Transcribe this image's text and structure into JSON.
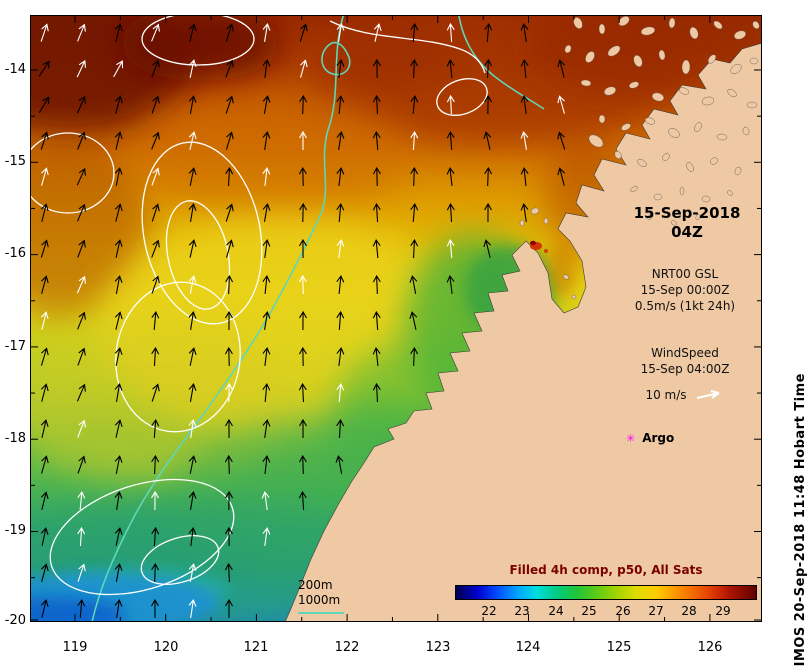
{
  "annotations": {
    "datetime": {
      "date": "15-Sep-2018",
      "time": "04Z"
    },
    "gsl": {
      "name": "NRT00 GSL",
      "time": "15-Sep 00:00Z",
      "scale": "0.5m/s (1kt 24h)"
    },
    "wind": {
      "name": "WindSpeed",
      "time": "15-Sep 04:00Z",
      "scale": "10 m/s"
    },
    "argo": {
      "label": "Argo"
    },
    "depth": {
      "d200": "200m",
      "d1000": "1000m"
    }
  },
  "icons": {
    "argo_marker": "✳"
  },
  "axes": {
    "x": [
      "119",
      "120",
      "121",
      "122",
      "123",
      "124",
      "125",
      "126"
    ],
    "y": [
      "-14",
      "-15",
      "-16",
      "-17",
      "-18",
      "-19",
      "-20"
    ]
  },
  "colorbar": {
    "title": "Filled 4h comp, p50, All Sats",
    "ticks": [
      "22",
      "23",
      "24",
      "25",
      "26",
      "27",
      "28",
      "29"
    ]
  },
  "watermark": "IMOS 20-Sep-2018 11:48 Hobart Time",
  "colors": {
    "land": "#efc9a3",
    "contour_depth": "#5fd6b8",
    "contour_gsl": "#ffffff",
    "argo_marker": "#ff00ff",
    "colorbar_title": "#7a0000"
  },
  "chart_data": {
    "type": "heatmap",
    "title": "Filled 4h comp, p50, All Sats",
    "description": "Sea surface temperature composite map with wind vectors, geostrophic sea-level contours and bathymetry contours (200m, 1000m), Kimberley coast region",
    "x_ticks": [
      119,
      120,
      121,
      122,
      123,
      124,
      125,
      126
    ],
    "y_ticks": [
      -14,
      -15,
      -16,
      -17,
      -18,
      -19,
      -20
    ],
    "x_range": [
      118.5,
      126.6
    ],
    "y_range": [
      -20.2,
      -13.4
    ],
    "colorbar_range": [
      21,
      30
    ],
    "colorbar_ticks": [
      22,
      23,
      24,
      25,
      26,
      27,
      28,
      29
    ],
    "units": "degC"
  }
}
